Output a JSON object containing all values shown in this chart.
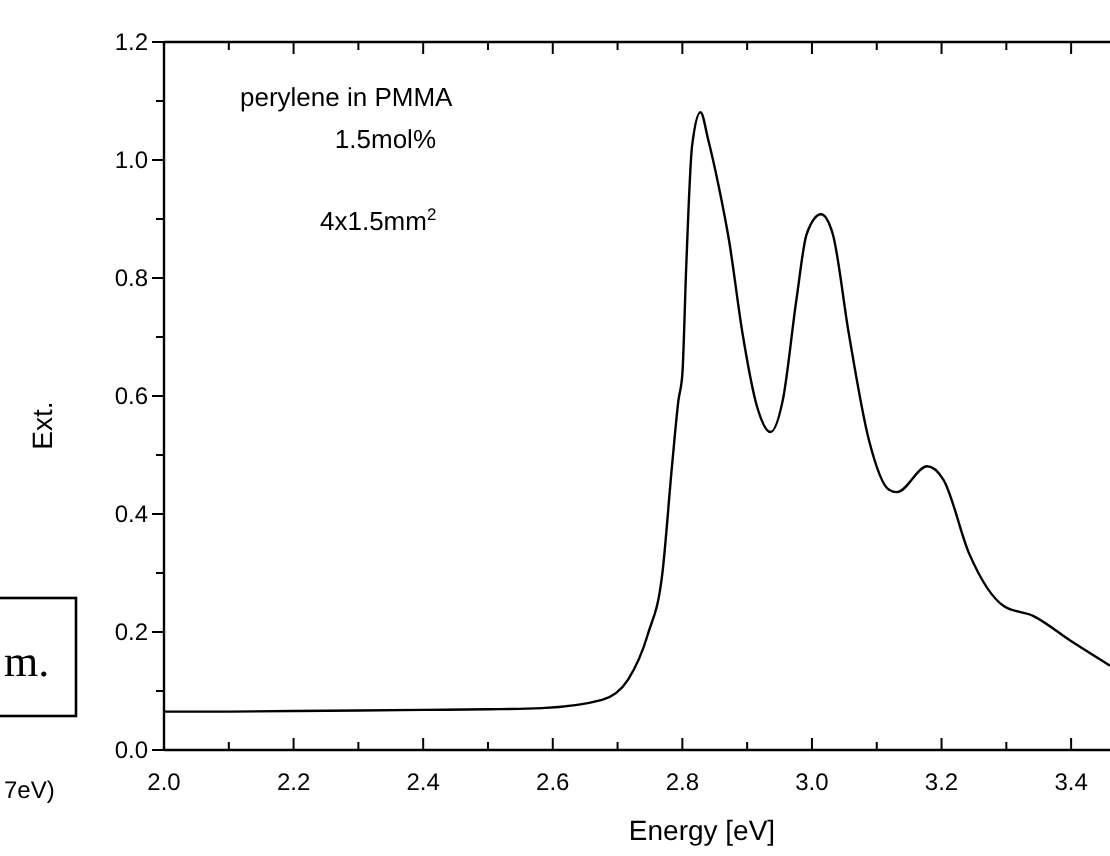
{
  "chart_data": {
    "type": "line",
    "xlabel": "Energy [eV]",
    "ylabel": "Ext.",
    "xlim": [
      2.0,
      3.46
    ],
    "ylim": [
      0.0,
      1.2
    ],
    "xticks": [
      {
        "value": 2.0,
        "label": "2.0"
      },
      {
        "value": 2.1,
        "label": null
      },
      {
        "value": 2.2,
        "label": "2.2"
      },
      {
        "value": 2.3,
        "label": null
      },
      {
        "value": 2.4,
        "label": "2.4"
      },
      {
        "value": 2.5,
        "label": null
      },
      {
        "value": 2.6,
        "label": "2.6"
      },
      {
        "value": 2.7,
        "label": null
      },
      {
        "value": 2.8,
        "label": "2.8"
      },
      {
        "value": 2.9,
        "label": null
      },
      {
        "value": 3.0,
        "label": "3.0"
      },
      {
        "value": 3.1,
        "label": null
      },
      {
        "value": 3.2,
        "label": "3.2"
      },
      {
        "value": 3.3,
        "label": null
      },
      {
        "value": 3.4,
        "label": "3.4"
      }
    ],
    "yticks": [
      {
        "value": 0.0,
        "label": "0.0"
      },
      {
        "value": 0.1,
        "label": null
      },
      {
        "value": 0.2,
        "label": "0.2"
      },
      {
        "value": 0.3,
        "label": null
      },
      {
        "value": 0.4,
        "label": "0.4"
      },
      {
        "value": 0.5,
        "label": null
      },
      {
        "value": 0.6,
        "label": "0.6"
      },
      {
        "value": 0.7,
        "label": null
      },
      {
        "value": 0.8,
        "label": "0.8"
      },
      {
        "value": 0.9,
        "label": null
      },
      {
        "value": 1.0,
        "label": "1.0"
      },
      {
        "value": 1.1,
        "label": null
      },
      {
        "value": 1.2,
        "label": "1.2"
      }
    ],
    "marker": "none",
    "line_style": "solid",
    "annotations": [
      "perylene in PMMA",
      "1.5mol%",
      "4x1.5mm$^{2}$",
      "m.",
      "7eV)"
    ],
    "series": [
      {
        "color": "#000000",
        "x": [
          2.0,
          2.1,
          2.2,
          2.3,
          2.4,
          2.5,
          2.583,
          2.676,
          2.716,
          2.747,
          2.769,
          2.784,
          2.794,
          2.8,
          2.806,
          2.815,
          2.828,
          2.84,
          2.856,
          2.872,
          2.893,
          2.915,
          2.936,
          2.955,
          2.976,
          2.992,
          3.014,
          3.032,
          3.057,
          3.088,
          3.119,
          3.131,
          3.178,
          3.203,
          3.243,
          3.296,
          3.342,
          3.398,
          3.46
        ],
        "values": [
          0.065,
          0.065,
          0.066,
          0.067,
          0.068,
          0.069,
          0.071,
          0.085,
          0.119,
          0.197,
          0.298,
          0.481,
          0.593,
          0.637,
          0.82,
          1.024,
          1.081,
          1.034,
          0.956,
          0.864,
          0.705,
          0.583,
          0.539,
          0.593,
          0.763,
          0.875,
          0.908,
          0.875,
          0.705,
          0.525,
          0.441,
          0.437,
          0.481,
          0.458,
          0.332,
          0.244,
          0.227,
          0.186,
          0.143
        ]
      }
    ]
  }
}
